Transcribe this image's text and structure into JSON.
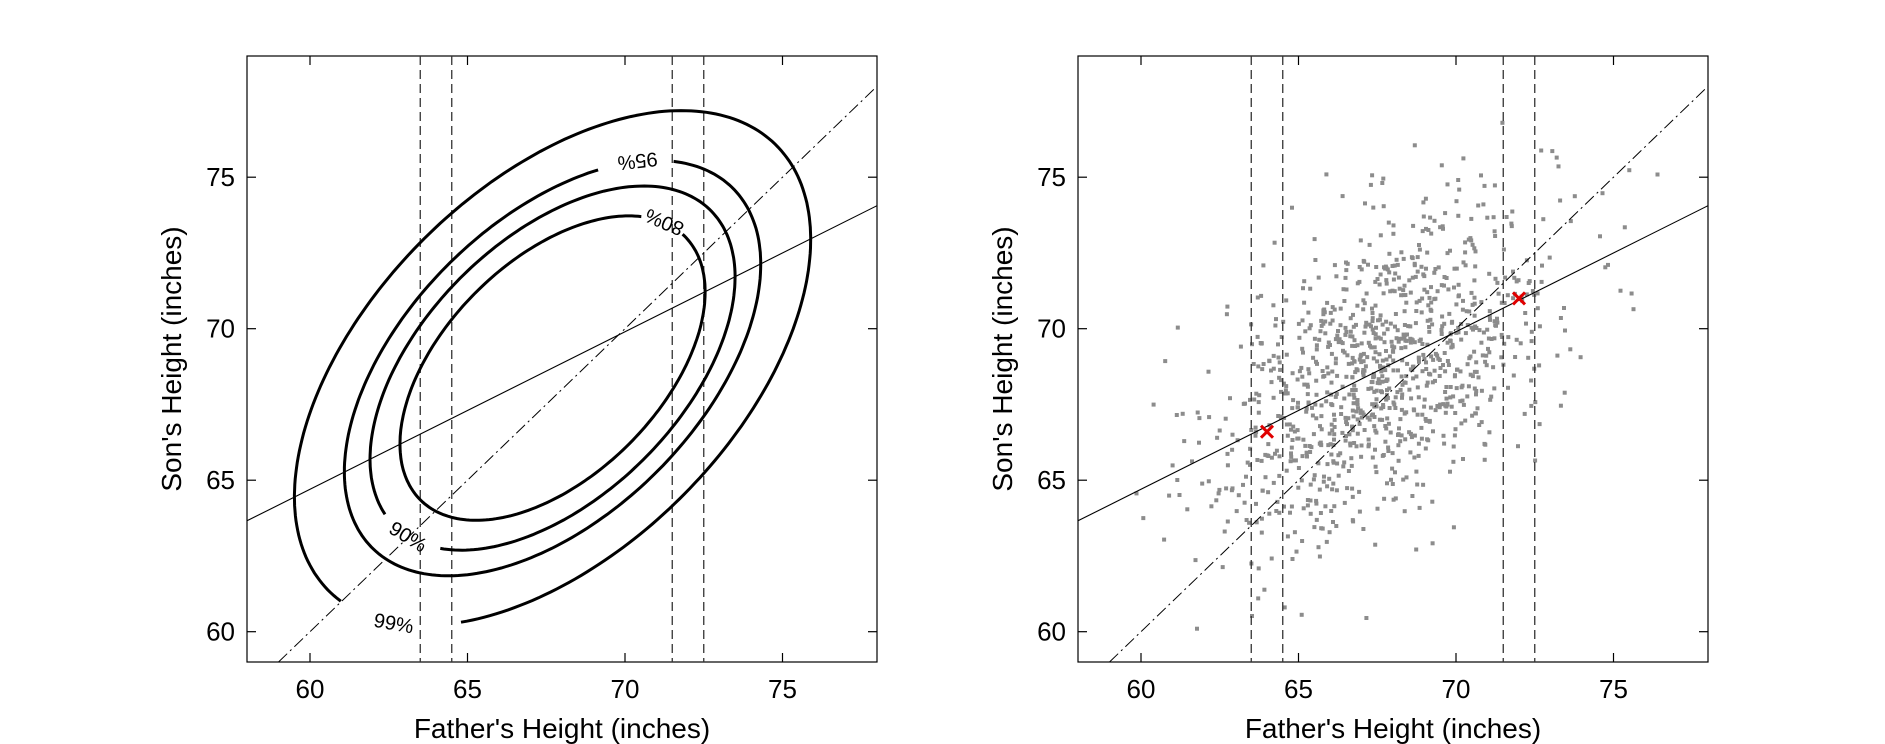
{
  "chart_data": [
    {
      "type": "contour",
      "xlabel": "Father's Height (inches)",
      "ylabel": "Son's Height (inches)",
      "xlim": [
        58,
        78
      ],
      "ylim": [
        59,
        79
      ],
      "xticks": [
        60,
        65,
        70,
        75
      ],
      "yticks": [
        60,
        65,
        70,
        75
      ],
      "grid": false,
      "mean": [
        67.7,
        68.7
      ],
      "sd": [
        2.7,
        2.8
      ],
      "correlation": 0.5,
      "regression_line": {
        "slope": 0.52,
        "intercept": 33.5
      },
      "identity_line": {
        "slope": 1,
        "intercept": 0
      },
      "vertical_lines": [
        63.5,
        64.5,
        71.5,
        72.5
      ],
      "contours": [
        {
          "label": "80%",
          "level": 0.8
        },
        {
          "label": "90%",
          "level": 0.9
        },
        {
          "label": "95%",
          "level": 0.95
        },
        {
          "label": "99%",
          "level": 0.99
        }
      ]
    },
    {
      "type": "scatter",
      "xlabel": "Father's Height (inches)",
      "ylabel": "Son's Height (inches)",
      "xlim": [
        58,
        78
      ],
      "ylim": [
        59,
        79
      ],
      "xticks": [
        60,
        65,
        70,
        75
      ],
      "yticks": [
        60,
        65,
        70,
        75
      ],
      "grid": false,
      "n_points": 1078,
      "point_color": "#8c8c8c",
      "regression_line": {
        "slope": 0.52,
        "intercept": 33.5
      },
      "identity_line": {
        "slope": 1,
        "intercept": 0
      },
      "vertical_lines": [
        63.5,
        64.5,
        71.5,
        72.5
      ],
      "highlight_points": [
        {
          "x": 64,
          "y": 66.6
        },
        {
          "x": 72,
          "y": 71.0
        }
      ],
      "highlight_color": "#e00000"
    }
  ]
}
